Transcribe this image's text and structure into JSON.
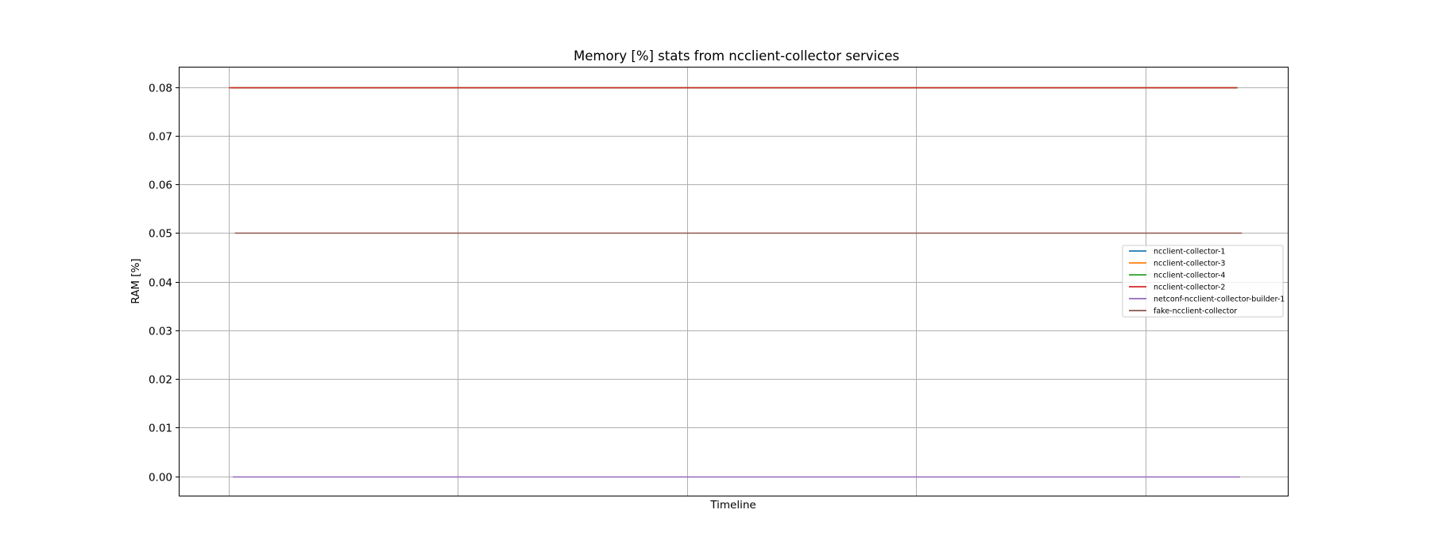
{
  "chart_data": {
    "type": "line",
    "title": "Memory [%] stats from ncclient-collector services",
    "xlabel": "Timeline",
    "ylabel": "RAM [%]",
    "ylim": [
      -0.004,
      0.084
    ],
    "yticks": [
      0.0,
      0.01,
      0.02,
      0.03,
      0.04,
      0.05,
      0.06,
      0.07,
      0.08
    ],
    "ytick_labels": [
      "0.00",
      "0.01",
      "0.02",
      "0.03",
      "0.04",
      "0.05",
      "0.06",
      "0.07",
      "0.08"
    ],
    "xlim": [
      0,
      100
    ],
    "xgrid": [
      0,
      22.73,
      45.45,
      68.18,
      90.91
    ],
    "grid": true,
    "legend_position": "center-right",
    "series": [
      {
        "name": "ncclient-collector-1",
        "color": "#1f77b4",
        "x": [
          0.2,
          100
        ],
        "y": [
          0.08,
          0.08
        ]
      },
      {
        "name": "ncclient-collector-3",
        "color": "#ff7f0e",
        "x": [
          0.1,
          99.9
        ],
        "y": [
          0.08,
          0.08
        ]
      },
      {
        "name": "ncclient-collector-4",
        "color": "#2ca02c",
        "x": [
          0.3,
          100.1
        ],
        "y": [
          0.08,
          0.08
        ]
      },
      {
        "name": "ncclient-collector-2",
        "color": "#d62728",
        "x": [
          0.0,
          100.0
        ],
        "y": [
          0.08,
          0.08
        ]
      },
      {
        "name": "netconf-ncclient-collector-builder-1",
        "color": "#9467bd",
        "x": [
          0.4,
          100.3
        ],
        "y": [
          0.0,
          0.0
        ]
      },
      {
        "name": "fake-ncclient-collector",
        "color": "#8c564b",
        "x": [
          0.6,
          100.5
        ],
        "y": [
          0.05,
          0.05
        ]
      }
    ]
  }
}
